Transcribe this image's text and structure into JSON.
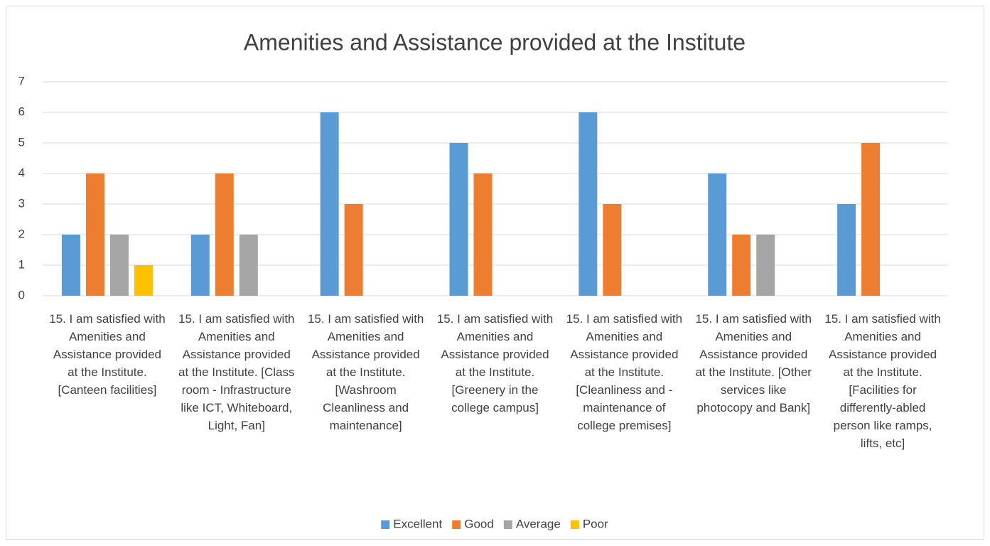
{
  "chart_data": {
    "type": "bar",
    "title": "Amenities and Assistance provided at the Institute",
    "categories": [
      "15. I am satisfied with Amenities and Assistance provided at the Institute. [Canteen facilities]",
      "15. I am satisfied with Amenities and Assistance provided at the Institute. [Class room - Infrastructure like ICT, Whiteboard, Light, Fan]",
      "15. I am satisfied with Amenities and Assistance provided at the Institute. [Washroom Cleanliness and maintenance]",
      "15. I am satisfied with Amenities and Assistance provided at the Institute. [Greenery in the college campus]",
      "15. I am satisfied with Amenities and Assistance provided at the Institute. [Cleanliness and - maintenance of college premises]",
      "15. I am satisfied with Amenities and Assistance provided at the Institute. [Other services like photocopy and Bank]",
      "15. I am satisfied with Amenities and Assistance provided at the Institute. [Facilities for differently-abled person like ramps, lifts, etc]"
    ],
    "series": [
      {
        "name": "Excellent",
        "color": "#5b9bd5",
        "values": [
          2,
          2,
          6,
          5,
          6,
          4,
          3
        ]
      },
      {
        "name": "Good",
        "color": "#ed7d31",
        "values": [
          4,
          4,
          3,
          4,
          3,
          2,
          5
        ]
      },
      {
        "name": "Average",
        "color": "#a5a5a5",
        "values": [
          2,
          2,
          0,
          0,
          0,
          2,
          0
        ]
      },
      {
        "name": "Poor",
        "color": "#ffc000",
        "values": [
          1,
          0,
          0,
          0,
          0,
          0,
          0
        ]
      }
    ],
    "ylim": [
      0,
      7
    ],
    "yticks": [
      0,
      1,
      2,
      3,
      4,
      5,
      6,
      7
    ],
    "grid": true,
    "legend": "bottom"
  }
}
